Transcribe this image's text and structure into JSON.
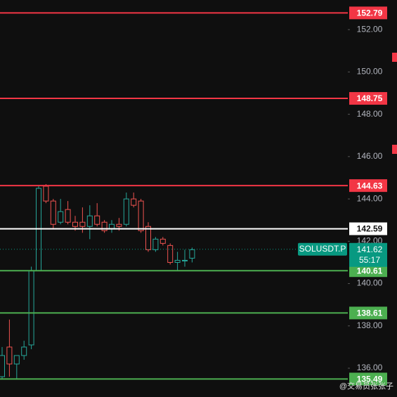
{
  "chart_data": {
    "type": "candlestick",
    "ylim": [
      134.64,
      153.4
    ],
    "yticks": [
      {
        "value": 136,
        "label": "136.00"
      },
      {
        "value": 138,
        "label": "138.00"
      },
      {
        "value": 140,
        "label": "140.00"
      },
      {
        "value": 142,
        "label": "142.00"
      },
      {
        "value": 144,
        "label": "144.00"
      },
      {
        "value": 146,
        "label": "146.00"
      },
      {
        "value": 148,
        "label": "148.00"
      },
      {
        "value": 150,
        "label": "150.00"
      },
      {
        "value": 152,
        "label": "152.00"
      }
    ],
    "up_color": "#26a69a",
    "down_color": "#ef5350",
    "open": [
      135.6,
      137.0,
      136.2,
      136.6,
      137.1,
      140.6,
      144.6,
      143.9,
      142.9,
      143.5,
      142.9,
      142.9,
      142.7,
      143.2,
      142.9,
      142.6,
      142.8,
      142.8,
      144.0,
      143.9,
      142.7,
      141.6,
      142.1,
      141.8,
      141.0,
      141.1,
      141.2
    ],
    "high": [
      137.0,
      138.3,
      136.6,
      137.3,
      140.8,
      144.6,
      144.7,
      144.0,
      144.0,
      143.9,
      143.2,
      143.6,
      143.7,
      143.8,
      143.0,
      143.0,
      143.1,
      144.3,
      144.3,
      144.0,
      142.9,
      142.2,
      142.2,
      141.9,
      141.5,
      141.6,
      141.7
    ],
    "low": [
      135.5,
      135.6,
      135.5,
      136.4,
      136.9,
      140.6,
      143.8,
      142.6,
      142.8,
      142.8,
      142.5,
      142.4,
      142.1,
      142.7,
      142.4,
      142.4,
      142.5,
      142.7,
      143.6,
      142.4,
      141.5,
      141.5,
      141.8,
      140.9,
      140.6,
      140.8,
      141.0
    ],
    "close": [
      136.6,
      136.2,
      136.6,
      137.0,
      140.6,
      144.5,
      143.9,
      142.8,
      143.4,
      142.9,
      142.7,
      142.7,
      143.2,
      142.8,
      142.5,
      142.8,
      142.7,
      144.0,
      143.7,
      142.5,
      141.6,
      142.1,
      141.9,
      141.0,
      141.1,
      141.1,
      141.6
    ],
    "levels": [
      {
        "value": 152.79,
        "color": "#f23645"
      },
      {
        "value": 148.75,
        "color": "#f23645"
      },
      {
        "value": 144.63,
        "color": "#f23645"
      },
      {
        "value": 142.59,
        "color": "#ffffff"
      },
      {
        "value": 140.61,
        "color": "#4caf50"
      },
      {
        "value": 138.61,
        "color": "#4caf50"
      },
      {
        "value": 135.49,
        "color": "#4caf50"
      }
    ],
    "current": {
      "symbol": "SOLUSDT.P",
      "value": 141.62,
      "countdown": "55:17",
      "color": "#089981"
    },
    "watermark": "@交易员张张子"
  }
}
